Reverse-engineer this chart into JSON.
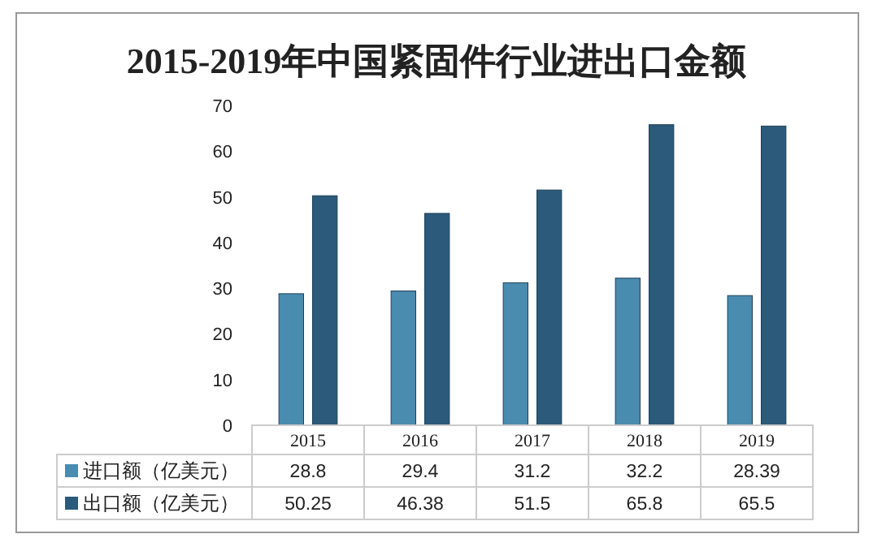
{
  "chart_data": {
    "type": "bar",
    "title": "2015-2019年中国紧固件行业进出口金额",
    "categories": [
      "2015",
      "2016",
      "2017",
      "2018",
      "2019"
    ],
    "series": [
      {
        "name": "进口额（亿美元）",
        "color": "#4a8bb0",
        "values": [
          28.8,
          29.4,
          31.2,
          32.2,
          28.39
        ],
        "value_labels": [
          "28.8",
          "29.4",
          "31.2",
          "32.2",
          "28.39"
        ]
      },
      {
        "name": "出口额（亿美元）",
        "color": "#2b5a7a",
        "values": [
          50.25,
          46.38,
          51.5,
          65.8,
          65.5
        ],
        "value_labels": [
          "50.25",
          "46.38",
          "51.5",
          "65.8",
          "65.5"
        ]
      }
    ],
    "ylim": [
      0,
      70
    ],
    "yticks": [
      0,
      10,
      20,
      30,
      40,
      50,
      60,
      70
    ],
    "grid": false,
    "legend": "bottom",
    "data_labels": true
  }
}
